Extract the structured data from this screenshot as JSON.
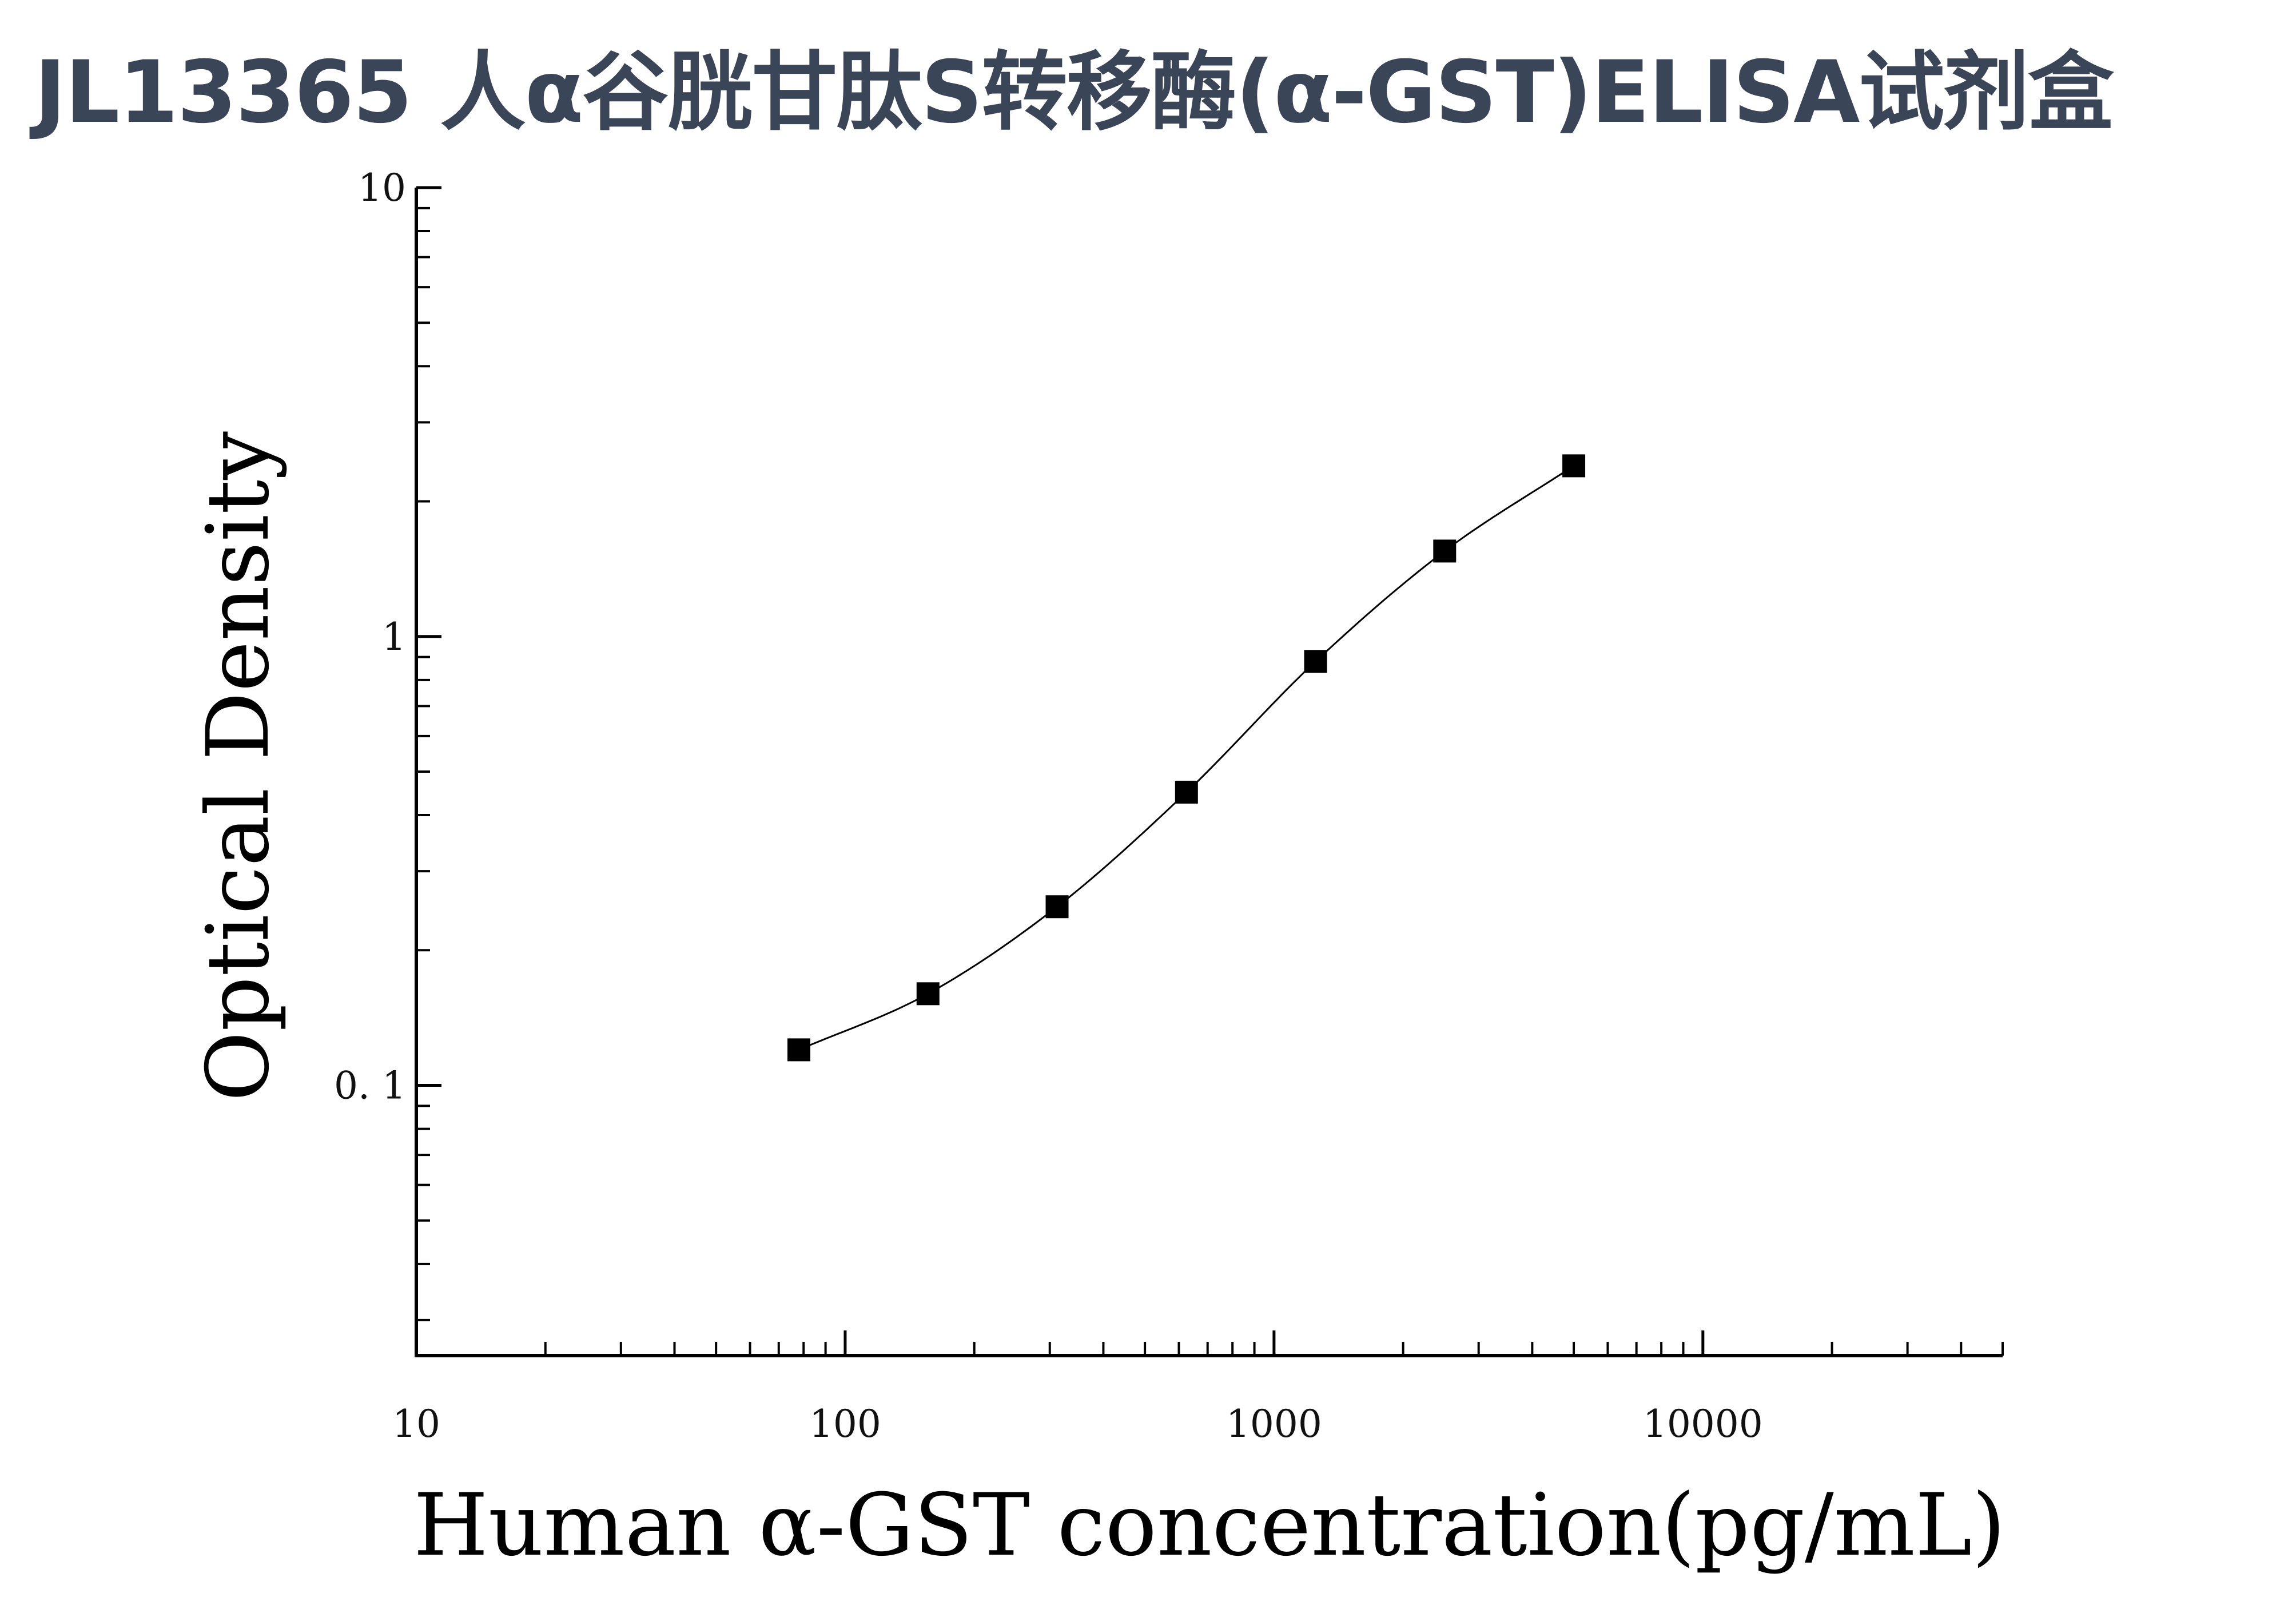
{
  "title": "JL13365 人α谷胱甘肽S转移酶(α-GST)ELISA试剂盒",
  "chart_data": {
    "type": "scatter",
    "xlabel": "Human α-GST concentration(pg/mL)",
    "ylabel": "Optical Density",
    "x_scale": "log",
    "y_scale": "log",
    "xlim": [
      10,
      50000
    ],
    "ylim": [
      0.025,
      10
    ],
    "x_ticks": [
      {
        "value": 10,
        "label": "10"
      },
      {
        "value": 100,
        "label": "100"
      },
      {
        "value": 1000,
        "label": "1000"
      },
      {
        "value": 10000,
        "label": "10000"
      }
    ],
    "y_ticks": [
      {
        "value": 0.1,
        "label": "0. 1"
      },
      {
        "value": 1,
        "label": "1"
      },
      {
        "value": 10,
        "label": "10"
      }
    ],
    "series": [
      {
        "x": [
          78,
          156,
          312,
          625,
          1250,
          2500,
          5000
        ],
        "y": [
          0.12,
          0.16,
          0.25,
          0.45,
          0.88,
          1.55,
          2.4
        ],
        "marker": "square",
        "fit_line": true
      }
    ],
    "grid": false,
    "colors": {
      "marker": "#000000",
      "line": "#000000",
      "axis": "#000000"
    }
  }
}
